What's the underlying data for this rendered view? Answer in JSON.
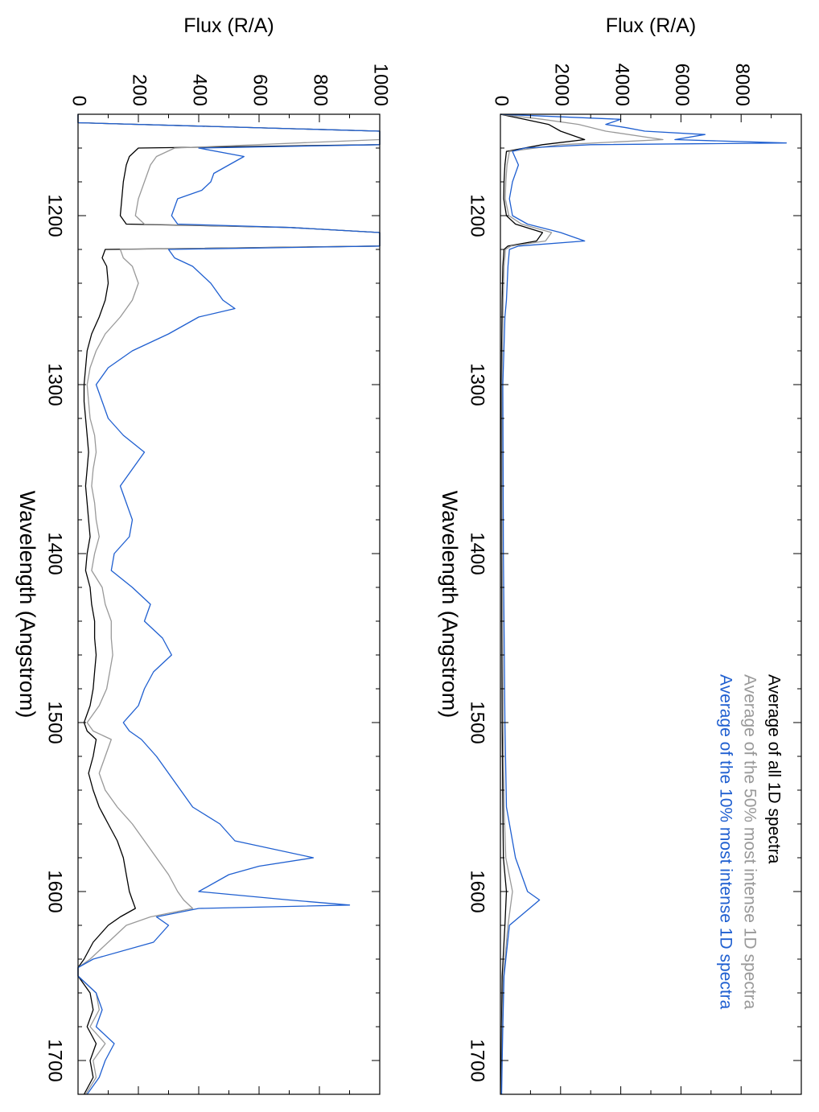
{
  "chart_data": [
    {
      "type": "line",
      "panel": "left",
      "orientation": "rotated 90 degrees clockwise (wavelength axis runs top-to-bottom)",
      "xlabel": "Wavelength (Angstrom)",
      "ylabel": "Flux (R/A)",
      "xlim": [
        1140,
        1720
      ],
      "ylim": [
        0,
        1000
      ],
      "xticks": [
        1200,
        1300,
        1400,
        1500,
        1600,
        1700
      ],
      "yticks": [
        0,
        200,
        400,
        600,
        800,
        1000
      ],
      "grid": false,
      "legend": "none",
      "series": [
        {
          "color": "#000000",
          "x": [
            1140,
            1145,
            1150,
            1155,
            1158,
            1160,
            1165,
            1170,
            1180,
            1190,
            1200,
            1205,
            1207,
            1210,
            1215,
            1218,
            1220,
            1225,
            1230,
            1240,
            1250,
            1260,
            1270,
            1280,
            1290,
            1300,
            1310,
            1320,
            1330,
            1340,
            1350,
            1360,
            1370,
            1380,
            1390,
            1400,
            1410,
            1420,
            1430,
            1440,
            1450,
            1460,
            1470,
            1480,
            1490,
            1500,
            1505,
            1510,
            1520,
            1530,
            1540,
            1550,
            1560,
            1570,
            1580,
            1590,
            1600,
            1605,
            1610,
            1615,
            1620,
            1630,
            1640,
            1645,
            1650,
            1660,
            1670,
            1680,
            1690,
            1700,
            1710,
            1720
          ],
          "y": [
            0,
            0,
            1000,
            1000,
            1000,
            200,
            170,
            160,
            150,
            145,
            140,
            160,
            700,
            1000,
            1000,
            1000,
            90,
            80,
            95,
            100,
            90,
            70,
            45,
            30,
            25,
            20,
            20,
            25,
            30,
            35,
            30,
            25,
            30,
            35,
            40,
            30,
            25,
            40,
            45,
            55,
            55,
            60,
            55,
            50,
            40,
            20,
            30,
            60,
            50,
            35,
            50,
            70,
            100,
            130,
            150,
            160,
            170,
            180,
            190,
            140,
            100,
            50,
            20,
            0,
            0,
            40,
            50,
            30,
            60,
            40,
            50,
            20
          ]
        },
        {
          "color": "#999999",
          "x": [
            1140,
            1145,
            1150,
            1155,
            1160,
            1165,
            1170,
            1180,
            1190,
            1200,
            1205,
            1207,
            1210,
            1215,
            1218,
            1220,
            1225,
            1230,
            1240,
            1250,
            1260,
            1270,
            1280,
            1290,
            1300,
            1310,
            1320,
            1330,
            1340,
            1350,
            1360,
            1370,
            1380,
            1390,
            1400,
            1410,
            1420,
            1430,
            1440,
            1450,
            1460,
            1470,
            1480,
            1490,
            1500,
            1505,
            1510,
            1520,
            1530,
            1540,
            1550,
            1560,
            1570,
            1580,
            1590,
            1600,
            1605,
            1610,
            1615,
            1620,
            1630,
            1640,
            1645,
            1650,
            1660,
            1670,
            1680,
            1690,
            1700,
            1710,
            1720
          ],
          "y": [
            0,
            0,
            1000,
            1000,
            320,
            260,
            240,
            220,
            200,
            190,
            220,
            700,
            1000,
            1000,
            1000,
            140,
            150,
            180,
            200,
            180,
            140,
            90,
            60,
            40,
            30,
            35,
            40,
            55,
            60,
            50,
            45,
            55,
            60,
            70,
            55,
            45,
            80,
            90,
            110,
            110,
            115,
            105,
            95,
            70,
            30,
            50,
            110,
            90,
            70,
            90,
            130,
            180,
            220,
            260,
            300,
            330,
            350,
            380,
            240,
            160,
            100,
            40,
            0,
            0,
            60,
            70,
            40,
            90,
            50,
            60,
            25
          ]
        },
        {
          "color": "#1f5fd0",
          "x": [
            1140,
            1145,
            1150,
            1155,
            1158,
            1160,
            1165,
            1170,
            1175,
            1180,
            1185,
            1190,
            1195,
            1200,
            1205,
            1207,
            1210,
            1215,
            1218,
            1220,
            1225,
            1230,
            1240,
            1250,
            1255,
            1260,
            1270,
            1280,
            1290,
            1300,
            1310,
            1320,
            1330,
            1340,
            1350,
            1360,
            1370,
            1380,
            1390,
            1400,
            1410,
            1420,
            1430,
            1440,
            1450,
            1460,
            1470,
            1480,
            1490,
            1500,
            1505,
            1510,
            1520,
            1530,
            1540,
            1550,
            1560,
            1570,
            1580,
            1585,
            1590,
            1600,
            1605,
            1608,
            1610,
            1615,
            1620,
            1630,
            1640,
            1645,
            1650,
            1660,
            1670,
            1680,
            1690,
            1700,
            1710,
            1720
          ],
          "y": [
            0,
            0,
            1000,
            1000,
            1000,
            400,
            550,
            500,
            450,
            440,
            410,
            330,
            320,
            310,
            330,
            700,
            1000,
            1000,
            1000,
            300,
            320,
            380,
            440,
            480,
            520,
            400,
            300,
            180,
            100,
            60,
            80,
            100,
            150,
            220,
            180,
            140,
            160,
            180,
            170,
            120,
            110,
            180,
            240,
            220,
            280,
            310,
            250,
            220,
            200,
            150,
            170,
            210,
            260,
            300,
            340,
            380,
            470,
            520,
            780,
            600,
            500,
            400,
            700,
            900,
            400,
            260,
            300,
            250,
            50,
            0,
            0,
            60,
            80,
            60,
            120,
            90,
            70,
            30
          ]
        }
      ]
    },
    {
      "type": "line",
      "panel": "right",
      "orientation": "rotated 90 degrees clockwise (wavelength axis runs top-to-bottom)",
      "xlabel": "Wavelength (Angstrom)",
      "ylabel": "Flux (R/A)",
      "xlim": [
        1140,
        1720
      ],
      "ylim": [
        0,
        10000
      ],
      "xticks": [
        1200,
        1300,
        1400,
        1500,
        1600,
        1700
      ],
      "yticks": [
        0,
        2000,
        4000,
        6000,
        8000
      ],
      "grid": false,
      "legend": "top-right",
      "legend_entries": [
        "Average of all 1D spectra",
        "Average of the 50% most intense 1D spectra",
        "Average of the 10% most intense 1D spectra"
      ],
      "series": [
        {
          "name": "Average of all 1D spectra",
          "color": "#000000",
          "x": [
            1140,
            1143,
            1146,
            1150,
            1155,
            1158,
            1162,
            1170,
            1180,
            1190,
            1200,
            1205,
            1210,
            1215,
            1218,
            1220,
            1230,
            1250,
            1300,
            1400,
            1500,
            1550,
            1580,
            1600,
            1620,
            1650,
            1680,
            1700,
            1720
          ],
          "y": [
            0,
            800,
            1600,
            2000,
            2800,
            1400,
            200,
            150,
            120,
            110,
            200,
            500,
            1400,
            1200,
            250,
            120,
            80,
            60,
            30,
            40,
            60,
            80,
            100,
            200,
            150,
            60,
            40,
            30,
            20
          ]
        },
        {
          "name": "Average of the 50% most intense 1D spectra",
          "color": "#999999",
          "x": [
            1140,
            1143,
            1146,
            1150,
            1155,
            1158,
            1162,
            1170,
            1180,
            1190,
            1200,
            1205,
            1210,
            1215,
            1218,
            1220,
            1230,
            1250,
            1300,
            1400,
            1500,
            1550,
            1580,
            1600,
            1620,
            1650,
            1680,
            1700,
            1720
          ],
          "y": [
            0,
            1400,
            2600,
            3500,
            5400,
            2000,
            300,
            220,
            180,
            160,
            280,
            700,
            1700,
            1500,
            350,
            170,
            120,
            90,
            50,
            60,
            90,
            120,
            180,
            400,
            250,
            100,
            60,
            50,
            30
          ]
        },
        {
          "name": "Average of the 10% most intense 1D spectra",
          "color": "#1f5fd0",
          "x": [
            1140,
            1143,
            1146,
            1148,
            1150,
            1152,
            1155,
            1157,
            1158,
            1160,
            1162,
            1170,
            1180,
            1190,
            1200,
            1205,
            1210,
            1215,
            1218,
            1220,
            1230,
            1250,
            1260,
            1300,
            1400,
            1500,
            1550,
            1580,
            1590,
            1600,
            1605,
            1620,
            1650,
            1680,
            1700,
            1720
          ],
          "y": [
            0,
            4000,
            3500,
            4200,
            4800,
            6800,
            5800,
            9500,
            3000,
            800,
            400,
            600,
            400,
            300,
            400,
            900,
            2000,
            2800,
            600,
            300,
            250,
            200,
            150,
            80,
            100,
            150,
            200,
            500,
            700,
            900,
            1300,
            300,
            120,
            80,
            60,
            40
          ]
        }
      ]
    }
  ]
}
